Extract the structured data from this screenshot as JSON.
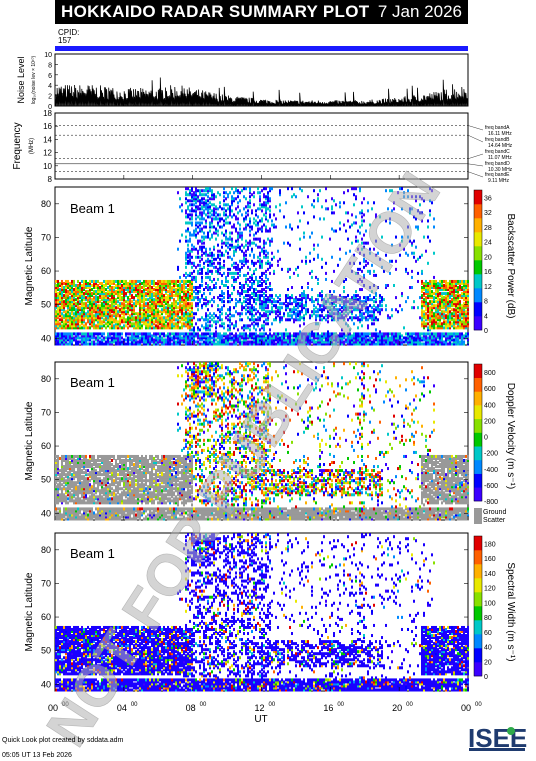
{
  "header": {
    "title": "HOKKAIDO RADAR SUMMARY PLOT",
    "date": "7 Jan 2026",
    "cpid_label": "CPID:",
    "cpid_value": "157"
  },
  "noise_panel": {
    "ylabel": "Noise Level",
    "ylabel_sub": "log₁₀(noise lev × 10¹⁰)",
    "yticks": [
      "0",
      "2",
      "4",
      "6",
      "8",
      "10"
    ]
  },
  "freq_panel": {
    "ylabel": "Frequency",
    "unit": "(MHz)",
    "yticks": [
      "8",
      "10",
      "12",
      "14",
      "16",
      "18"
    ],
    "bands": [
      {
        "label": "freq bandA",
        "value": "16.11 MHz"
      },
      {
        "label": "freq bandB",
        "value": "14.64 MHz"
      },
      {
        "label": "freq bandC",
        "value": "11.07 MHz"
      },
      {
        "label": "freq bandD",
        "value": "10.30 MHz"
      },
      {
        "label": "freq bandE",
        "value": "9.11 MHz"
      }
    ]
  },
  "panels": [
    {
      "beam": "Beam  1",
      "ylabel": "Magnetic Latitude",
      "cbar_label": "Backscatter Power (dB)",
      "cbar_ticks": [
        "0",
        "4",
        "8",
        "12",
        "16",
        "20",
        "24",
        "28",
        "32",
        "36"
      ]
    },
    {
      "beam": "Beam  1",
      "ylabel": "Magnetic Latitude",
      "cbar_label": "Doppler Velocity (m s⁻¹)",
      "cbar_ticks": [
        "-800",
        "-600",
        "-400",
        "-200",
        "0",
        "200",
        "400",
        "600",
        "800"
      ],
      "ground_label_1": "Ground",
      "ground_label_2": "Scatter"
    },
    {
      "beam": "Beam  1",
      "ylabel": "Magnetic Latitude",
      "cbar_label": "Spectral Width (m s⁻¹)",
      "cbar_ticks": [
        "0",
        "20",
        "40",
        "60",
        "80",
        "100",
        "120",
        "140",
        "160",
        "180"
      ]
    }
  ],
  "xaxis": {
    "label": "UT",
    "ticks": [
      {
        "h": "00",
        "m": "00"
      },
      {
        "h": "04",
        "m": "00"
      },
      {
        "h": "08",
        "m": "00"
      },
      {
        "h": "12",
        "m": "00"
      },
      {
        "h": "16",
        "m": "00"
      },
      {
        "h": "20",
        "m": "00"
      },
      {
        "h": "00",
        "m": "00"
      }
    ]
  },
  "lat_ticks": [
    "40",
    "50",
    "60",
    "70",
    "80"
  ],
  "watermark": "NOT FOR PUBLICATION",
  "footer": {
    "line1": "Quick Look plot created by sddata.adm",
    "line2": "05:05 UT 13 Feb 2026",
    "logo": "ISEE"
  },
  "colors": {
    "title_bg": "#000000",
    "cpid_bar": "#1a1aff",
    "ground_scatter": "#999999",
    "watermark": "#b0b0b0"
  },
  "chart_data": [
    {
      "type": "area",
      "title": "Noise Level",
      "ylabel": "Noise Level",
      "ylim": [
        0,
        10
      ],
      "xlim": [
        "00:00",
        "24:00"
      ],
      "x": [
        "00:00",
        "02:00",
        "04:00",
        "06:00",
        "07:00",
        "08:00",
        "10:00",
        "12:00",
        "14:00",
        "16:00",
        "18:00",
        "20:00",
        "22:00",
        "24:00"
      ],
      "values": [
        3,
        3,
        2.5,
        2.5,
        3,
        2.5,
        1.5,
        1,
        0.8,
        0.8,
        0.8,
        1.2,
        2,
        3
      ]
    },
    {
      "type": "line",
      "title": "Frequency",
      "ylabel": "Frequency (MHz)",
      "ylim": [
        8,
        18
      ],
      "series": [
        {
          "name": "freq bandA",
          "values": [
            16.11
          ]
        },
        {
          "name": "freq bandB",
          "values": [
            14.64
          ]
        },
        {
          "name": "freq bandC",
          "values": [
            11.07
          ]
        },
        {
          "name": "freq bandD",
          "values": [
            10.3
          ]
        },
        {
          "name": "freq bandE",
          "values": [
            9.11
          ]
        }
      ]
    },
    {
      "type": "heatmap",
      "title": "Backscatter Power",
      "ylabel": "Magnetic Latitude",
      "ylim": [
        38,
        85
      ],
      "zlim": [
        0,
        36
      ]
    },
    {
      "type": "heatmap",
      "title": "Doppler Velocity",
      "ylabel": "Magnetic Latitude",
      "ylim": [
        38,
        85
      ],
      "zlim": [
        -800,
        800
      ]
    },
    {
      "type": "heatmap",
      "title": "Spectral Width",
      "ylabel": "Magnetic Latitude",
      "ylim": [
        38,
        85
      ],
      "zlim": [
        0,
        180
      ]
    }
  ]
}
